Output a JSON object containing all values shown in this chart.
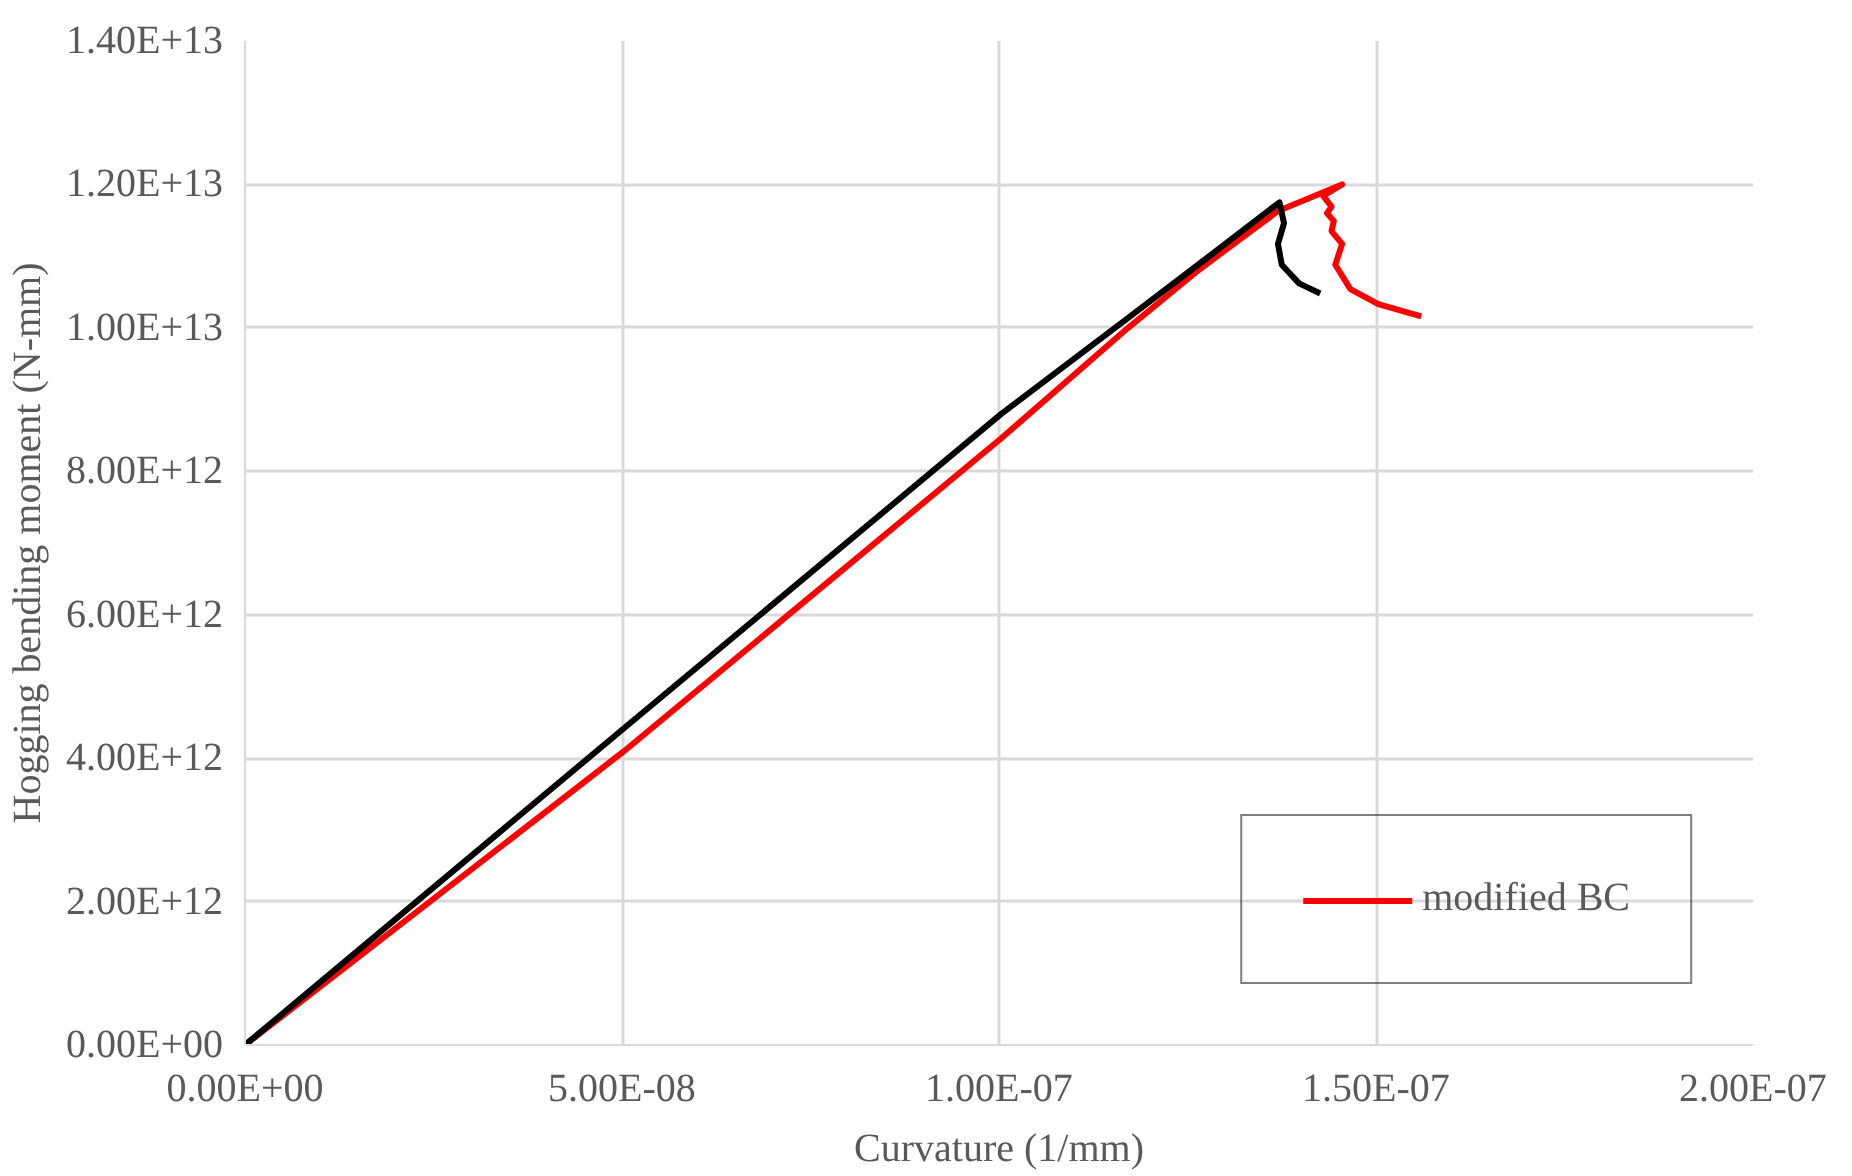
{
  "chart_data": {
    "type": "line",
    "xlabel": "Curvature (1/mm)",
    "ylabel": "Hogging bending moment (N-mm)",
    "xlim": [
      0,
      2e-07
    ],
    "ylim": [
      0,
      14000000000000.0
    ],
    "xticks": [
      {
        "value": 0,
        "label": "0.00E+00"
      },
      {
        "value": 5e-08,
        "label": "5.00E-08"
      },
      {
        "value": 1e-07,
        "label": "1.00E-07"
      },
      {
        "value": 1.5e-07,
        "label": "1.50E-07"
      },
      {
        "value": 2e-07,
        "label": "2.00E-07"
      }
    ],
    "yticks": [
      {
        "value": 0,
        "label": "0.00E+00"
      },
      {
        "value": 2000000000000.0,
        "label": "2.00E+12"
      },
      {
        "value": 4000000000000.0,
        "label": "4.00E+12"
      },
      {
        "value": 6000000000000.0,
        "label": "6.00E+12"
      },
      {
        "value": 8000000000000.0,
        "label": "8.00E+12"
      },
      {
        "value": 10000000000000.0,
        "label": "1.00E+13"
      },
      {
        "value": 12000000000000.0,
        "label": "1.20E+13"
      },
      {
        "value": 14000000000000.0,
        "label": "1.40E+13"
      }
    ],
    "grid": true,
    "legend": "bottom right",
    "line_style": "solid",
    "marker": "none",
    "series": [
      {
        "name": "modified BC",
        "color": "#ff0000",
        "x": [
          0,
          5.03e-08,
          1.003e-07,
          1.17e-07,
          1.264e-07,
          1.37e-07,
          1.455e-07,
          1.43e-07,
          1.441e-07,
          1.435e-07,
          1.444e-07,
          1.441e-07,
          1.455e-07,
          1.446e-07,
          1.466e-07,
          1.503e-07,
          1.56e-07
        ],
        "values": [
          0,
          4100000000000.0,
          8460000000000.0,
          9990000000000.0,
          10800000000000.0,
          11630000000000.0,
          12000000000000.0,
          11840000000000.0,
          11690000000000.0,
          11600000000000.0,
          11490000000000.0,
          11350000000000.0,
          11170000000000.0,
          10880000000000.0,
          10540000000000.0,
          10330000000000.0,
          10160000000000.0
        ]
      },
      {
        "color": "#000000",
        "x": [
          0,
          5.03e-08,
          1.003e-07,
          1.17e-07,
          1.264e-07,
          1.372e-07,
          1.378e-07,
          1.37e-07,
          1.375e-07,
          1.398e-07,
          1.426e-07
        ],
        "values": [
          0,
          4420000000000.0,
          8800000000000.0,
          10130000000000.0,
          10880000000000.0,
          11750000000000.0,
          11460000000000.0,
          11170000000000.0,
          10880000000000.0,
          10620000000000.0,
          10480000000000.0
        ]
      }
    ]
  }
}
